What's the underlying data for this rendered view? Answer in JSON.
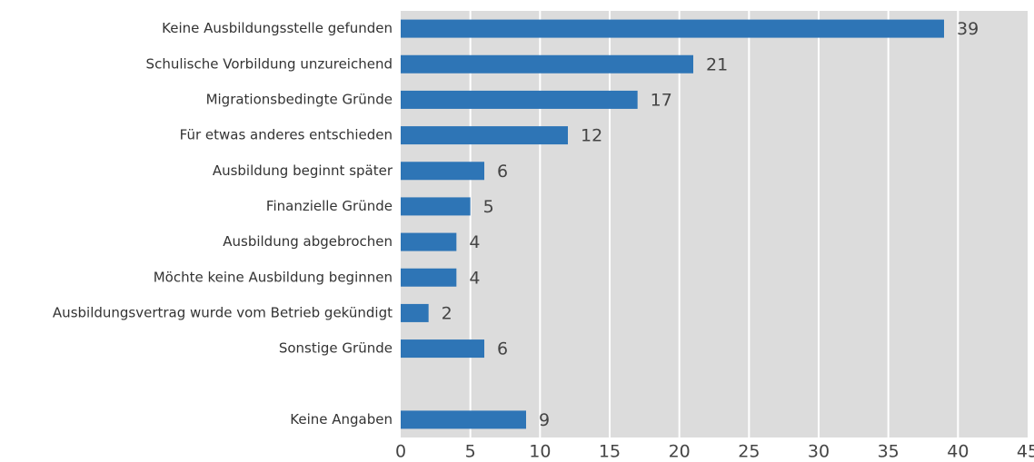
{
  "chart_data": {
    "type": "bar",
    "orientation": "horizontal",
    "categories": [
      "Keine Ausbildungsstelle gefunden",
      "Schulische Vorbildung unzureichend",
      "Migrationsbedingte Gründe",
      "Für etwas anderes entschieden",
      "Ausbildung beginnt später",
      "Finanzielle Gründe",
      "Ausbildung abgebrochen",
      "Möchte keine Ausbildung beginnen",
      "Ausbildungsvertrag wurde vom Betrieb gekündigt",
      "Sonstige Gründe",
      null,
      "Keine Angaben"
    ],
    "values": [
      39,
      21,
      17,
      12,
      6,
      5,
      4,
      4,
      2,
      6,
      null,
      9
    ],
    "color": "#2e75b6",
    "xlim": [
      0,
      45
    ],
    "xticks": [
      0,
      5,
      10,
      15,
      20,
      25,
      30,
      35,
      40,
      45
    ],
    "grid": true
  }
}
